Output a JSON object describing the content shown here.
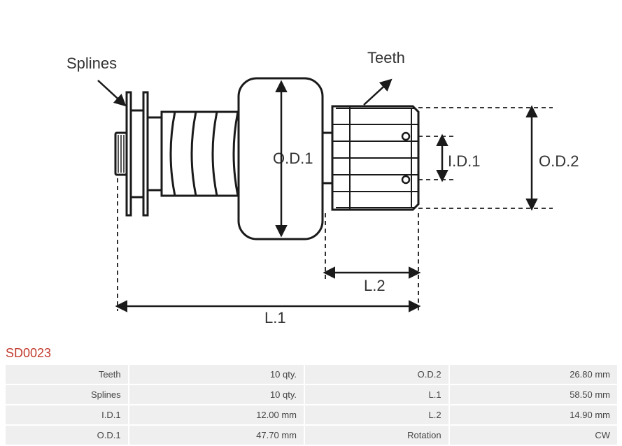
{
  "diagram": {
    "type": "technical-drawing",
    "stroke_color": "#1a1a1a",
    "stroke_width_main": 3,
    "stroke_width_thin": 2,
    "background": "#ffffff",
    "labels": {
      "splines": "Splines",
      "teeth": "Teeth",
      "od1": "O.D.1",
      "od2": "O.D.2",
      "id1": "I.D.1",
      "l1": "L.1",
      "l2": "L.2"
    },
    "label_fontsize": 22,
    "label_color": "#333333",
    "dashed_pattern": "6,5"
  },
  "part_code": "SD0023",
  "part_code_color": "#c23b2e",
  "part_code_fontsize": 18,
  "table": {
    "cell_bg": "#efefef",
    "text_color": "#444444",
    "fontsize": 13,
    "rows": [
      {
        "l_label": "Teeth",
        "l_value": "10 qty.",
        "r_label": "O.D.2",
        "r_value": "26.80 mm"
      },
      {
        "l_label": "Splines",
        "l_value": "10 qty.",
        "r_label": "L.1",
        "r_value": "58.50 mm"
      },
      {
        "l_label": "I.D.1",
        "l_value": "12.00 mm",
        "r_label": "L.2",
        "r_value": "14.90 mm"
      },
      {
        "l_label": "O.D.1",
        "l_value": "47.70 mm",
        "r_label": "Rotation",
        "r_value": "CW"
      }
    ]
  }
}
